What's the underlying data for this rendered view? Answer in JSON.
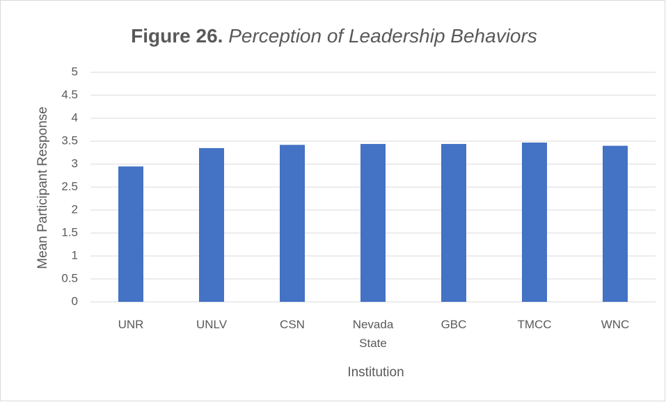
{
  "chart_data": {
    "type": "bar",
    "title": [
      "Figure 26.",
      "Perception of Leadership Behaviors"
    ],
    "x_label": "Institution",
    "y_label": "Mean Participant Response",
    "categories": [
      "UNR",
      "UNLV",
      "CSN",
      "Nevada State",
      "GBC",
      "TMCC",
      "WNC"
    ],
    "values": [
      2.95,
      3.35,
      3.42,
      3.44,
      3.44,
      3.47,
      3.4
    ],
    "color": "#4472c4",
    "ylim": [
      0,
      5
    ],
    "yticks": [
      0,
      0.5,
      1,
      1.5,
      2,
      2.5,
      3,
      3.5,
      4,
      4.5,
      5
    ],
    "grid": true
  }
}
